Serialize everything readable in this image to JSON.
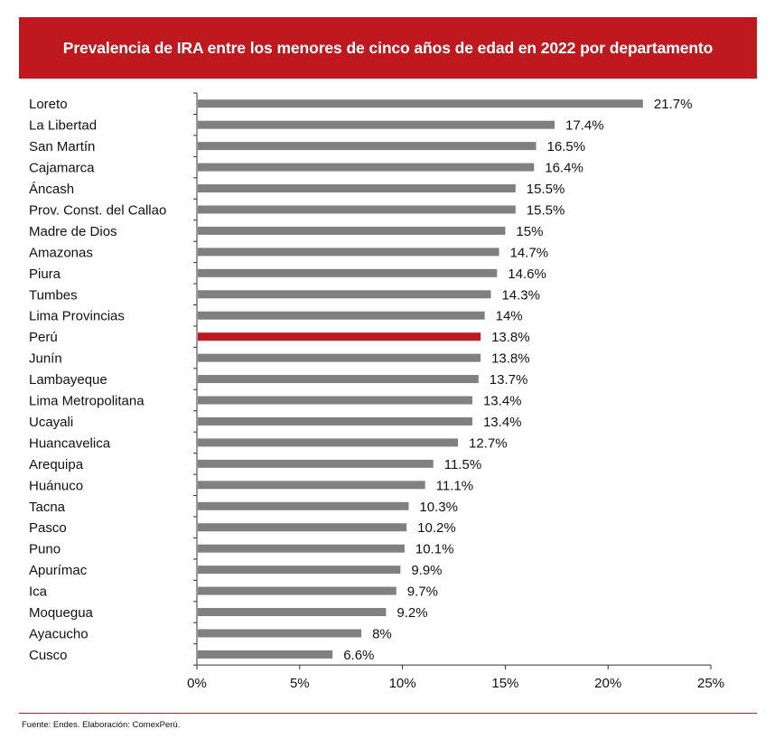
{
  "header": {
    "title": "Prevalencia de IRA entre los menores de cinco años de edad en 2022 por departamento"
  },
  "footer": {
    "source": "Fuente: Endes. Elaboración: ComexPerú."
  },
  "colors": {
    "banner": "#c0181f",
    "bar_default": "#808080",
    "bar_highlight": "#c0181f",
    "text": "#111111"
  },
  "chart_data": {
    "type": "bar",
    "orientation": "horizontal",
    "title": "Prevalencia de IRA entre los menores de cinco años de edad en 2022 por departamento",
    "xlabel": "",
    "ylabel": "",
    "xlim": [
      0,
      25
    ],
    "grid": false,
    "highlight": "Perú",
    "categories": [
      "Loreto",
      "La Libertad",
      "San Martín",
      "Cajamarca",
      "Áncash",
      "Prov. Const. del Callao",
      "Madre de Dios",
      "Amazonas",
      "Piura",
      "Tumbes",
      "Lima Provincias",
      "Perú",
      "Junín",
      "Lambayeque",
      "Lima Metropolitana",
      "Ucayali",
      "Huancavelica",
      "Arequipa",
      "Huánuco",
      "Tacna",
      "Pasco",
      "Puno",
      "Apurímac",
      "Ica",
      "Moquegua",
      "Ayacucho",
      "Cusco"
    ],
    "values": [
      21.7,
      17.4,
      16.5,
      16.4,
      15.5,
      15.5,
      15,
      14.7,
      14.6,
      14.3,
      14,
      13.8,
      13.8,
      13.7,
      13.4,
      13.4,
      12.7,
      11.5,
      11.1,
      10.3,
      10.2,
      10.1,
      9.9,
      9.7,
      9.2,
      8,
      6.6
    ],
    "value_labels": [
      "21.7%",
      "17.4%",
      "16.5%",
      "16.4%",
      "15.5%",
      "15.5%",
      "15%",
      "14.7%",
      "14.6%",
      "14.3%",
      "14%",
      "13.8%",
      "13.8%",
      "13.7%",
      "13.4%",
      "13.4%",
      "12.7%",
      "11.5%",
      "11.1%",
      "10.3%",
      "10.2%",
      "10.1%",
      "9.9%",
      "9.7%",
      "9.2%",
      "8%",
      "6.6%"
    ],
    "x_ticks": [
      0,
      5,
      10,
      15,
      20,
      25
    ],
    "x_tick_labels": [
      "0%",
      "5%",
      "10%",
      "15%",
      "20%",
      "25%"
    ]
  }
}
